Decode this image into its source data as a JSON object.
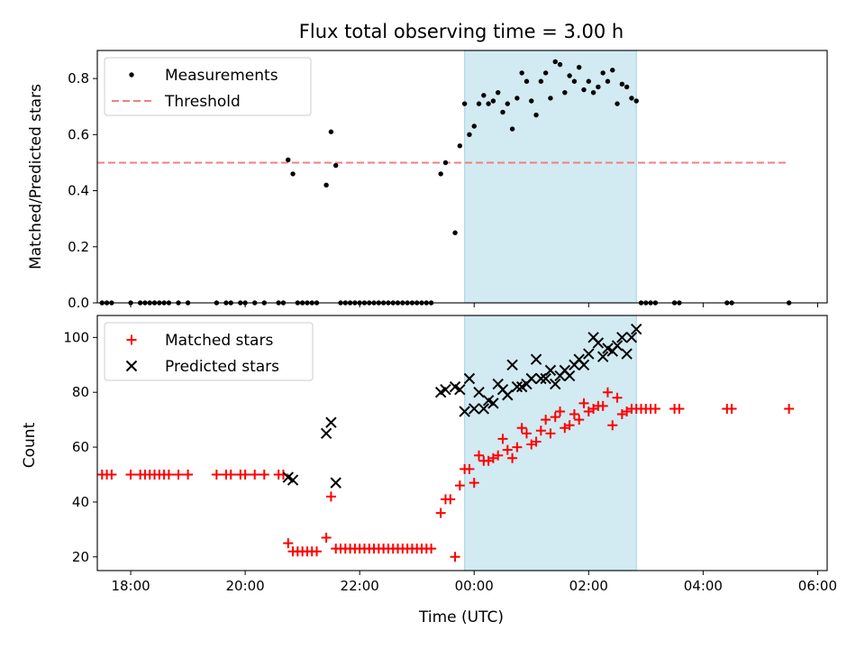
{
  "colors": {
    "measurement": "#000000",
    "threshold": "#f08080",
    "matched": "#ff0000",
    "predicted": "#000000",
    "highlight": "#add8e6"
  },
  "chart_data": [
    {
      "type": "scatter",
      "title": "Flux total observing time = 3.00 h",
      "xlabel": "",
      "ylabel": "Matched/Predicted stars",
      "xlim": [
        "17:25",
        "06:10"
      ],
      "ylim": [
        0,
        0.9
      ],
      "x_ticks": [
        "18:00",
        "20:00",
        "22:00",
        "00:00",
        "02:00",
        "04:00",
        "06:00"
      ],
      "y_ticks": [
        "0.0",
        "0.2",
        "0.4",
        "0.6",
        "0.8"
      ],
      "x_tick_labels_visible": false,
      "highlight_span": [
        "23:50",
        "02:50"
      ],
      "legend_position": "top-left",
      "legend": [
        "Measurements",
        "Threshold"
      ],
      "threshold": {
        "name": "Threshold",
        "value": 0.5,
        "x_range": [
          "17:25",
          "05:30"
        ],
        "style": "dashed"
      },
      "series": [
        {
          "name": "Measurements",
          "marker": "dot",
          "points": [
            [
              "17:30",
              0
            ],
            [
              "17:35",
              0
            ],
            [
              "17:40",
              0
            ],
            [
              "18:00",
              0
            ],
            [
              "18:10",
              0
            ],
            [
              "18:15",
              0
            ],
            [
              "18:20",
              0
            ],
            [
              "18:25",
              0
            ],
            [
              "18:30",
              0
            ],
            [
              "18:35",
              0
            ],
            [
              "18:40",
              0
            ],
            [
              "18:50",
              0
            ],
            [
              "19:00",
              0
            ],
            [
              "19:30",
              0
            ],
            [
              "19:40",
              0
            ],
            [
              "19:45",
              0
            ],
            [
              "19:55",
              0
            ],
            [
              "20:00",
              0
            ],
            [
              "20:10",
              0
            ],
            [
              "20:20",
              0
            ],
            [
              "20:35",
              0
            ],
            [
              "20:40",
              0
            ],
            [
              "20:45",
              0.51
            ],
            [
              "20:50",
              0.46
            ],
            [
              "20:55",
              0
            ],
            [
              "21:00",
              0
            ],
            [
              "21:05",
              0
            ],
            [
              "21:10",
              0
            ],
            [
              "21:15",
              0
            ],
            [
              "21:25",
              0.42
            ],
            [
              "21:30",
              0.61
            ],
            [
              "21:35",
              0.49
            ],
            [
              "21:40",
              0
            ],
            [
              "21:45",
              0
            ],
            [
              "21:50",
              0
            ],
            [
              "21:55",
              0
            ],
            [
              "22:00",
              0
            ],
            [
              "22:05",
              0
            ],
            [
              "22:10",
              0
            ],
            [
              "22:15",
              0
            ],
            [
              "22:20",
              0
            ],
            [
              "22:25",
              0
            ],
            [
              "22:30",
              0
            ],
            [
              "22:35",
              0
            ],
            [
              "22:40",
              0
            ],
            [
              "22:45",
              0
            ],
            [
              "22:50",
              0
            ],
            [
              "22:55",
              0
            ],
            [
              "23:00",
              0
            ],
            [
              "23:05",
              0
            ],
            [
              "23:10",
              0
            ],
            [
              "23:15",
              0
            ],
            [
              "23:25",
              0.46
            ],
            [
              "23:30",
              0.5
            ],
            [
              "23:40",
              0.25
            ],
            [
              "23:45",
              0.56
            ],
            [
              "23:50",
              0.71
            ],
            [
              "23:55",
              0.6
            ],
            [
              "00:00",
              0.63
            ],
            [
              "00:05",
              0.71
            ],
            [
              "00:10",
              0.74
            ],
            [
              "00:15",
              0.71
            ],
            [
              "00:20",
              0.72
            ],
            [
              "00:25",
              0.75
            ],
            [
              "00:30",
              0.68
            ],
            [
              "00:35",
              0.71
            ],
            [
              "00:40",
              0.62
            ],
            [
              "00:45",
              0.73
            ],
            [
              "00:50",
              0.82
            ],
            [
              "00:55",
              0.79
            ],
            [
              "01:00",
              0.72
            ],
            [
              "01:05",
              0.67
            ],
            [
              "01:10",
              0.79
            ],
            [
              "01:15",
              0.82
            ],
            [
              "01:20",
              0.73
            ],
            [
              "01:25",
              0.86
            ],
            [
              "01:30",
              0.85
            ],
            [
              "01:35",
              0.75
            ],
            [
              "01:40",
              0.81
            ],
            [
              "01:45",
              0.79
            ],
            [
              "01:50",
              0.84
            ],
            [
              "01:55",
              0.76
            ],
            [
              "02:00",
              0.79
            ],
            [
              "02:05",
              0.75
            ],
            [
              "02:10",
              0.77
            ],
            [
              "02:15",
              0.82
            ],
            [
              "02:20",
              0.79
            ],
            [
              "02:25",
              0.83
            ],
            [
              "02:30",
              0.71
            ],
            [
              "02:35",
              0.78
            ],
            [
              "02:40",
              0.77
            ],
            [
              "02:45",
              0.73
            ],
            [
              "02:50",
              0.72
            ],
            [
              "02:55",
              0
            ],
            [
              "03:00",
              0
            ],
            [
              "03:05",
              0
            ],
            [
              "03:10",
              0
            ],
            [
              "03:30",
              0
            ],
            [
              "03:35",
              0
            ],
            [
              "04:25",
              0
            ],
            [
              "04:30",
              0
            ],
            [
              "05:30",
              0
            ]
          ]
        }
      ]
    },
    {
      "type": "scatter",
      "title": "",
      "xlabel": "Time (UTC)",
      "ylabel": "Count",
      "xlim": [
        "17:25",
        "06:10"
      ],
      "ylim": [
        15,
        108
      ],
      "x_ticks": [
        "18:00",
        "20:00",
        "22:00",
        "00:00",
        "02:00",
        "04:00",
        "06:00"
      ],
      "y_ticks": [
        "20",
        "40",
        "60",
        "80",
        "100"
      ],
      "highlight_span": [
        "23:50",
        "02:50"
      ],
      "legend_position": "top-left",
      "legend": [
        "Matched stars",
        "Predicted stars"
      ],
      "series": [
        {
          "name": "Matched stars",
          "marker": "plus",
          "points": [
            [
              "17:30",
              50
            ],
            [
              "17:35",
              50
            ],
            [
              "17:40",
              50
            ],
            [
              "18:00",
              50
            ],
            [
              "18:10",
              50
            ],
            [
              "18:15",
              50
            ],
            [
              "18:20",
              50
            ],
            [
              "18:25",
              50
            ],
            [
              "18:30",
              50
            ],
            [
              "18:35",
              50
            ],
            [
              "18:40",
              50
            ],
            [
              "18:50",
              50
            ],
            [
              "19:00",
              50
            ],
            [
              "19:30",
              50
            ],
            [
              "19:40",
              50
            ],
            [
              "19:45",
              50
            ],
            [
              "19:55",
              50
            ],
            [
              "20:00",
              50
            ],
            [
              "20:10",
              50
            ],
            [
              "20:20",
              50
            ],
            [
              "20:35",
              50
            ],
            [
              "20:40",
              50
            ],
            [
              "20:45",
              25
            ],
            [
              "20:50",
              22
            ],
            [
              "20:55",
              22
            ],
            [
              "21:00",
              22
            ],
            [
              "21:05",
              22
            ],
            [
              "21:10",
              22
            ],
            [
              "21:15",
              22
            ],
            [
              "21:25",
              27
            ],
            [
              "21:30",
              42
            ],
            [
              "21:35",
              23
            ],
            [
              "21:40",
              23
            ],
            [
              "21:45",
              23
            ],
            [
              "21:50",
              23
            ],
            [
              "21:55",
              23
            ],
            [
              "22:00",
              23
            ],
            [
              "22:05",
              23
            ],
            [
              "22:10",
              23
            ],
            [
              "22:15",
              23
            ],
            [
              "22:20",
              23
            ],
            [
              "22:25",
              23
            ],
            [
              "22:30",
              23
            ],
            [
              "22:35",
              23
            ],
            [
              "22:40",
              23
            ],
            [
              "22:45",
              23
            ],
            [
              "22:50",
              23
            ],
            [
              "22:55",
              23
            ],
            [
              "23:00",
              23
            ],
            [
              "23:05",
              23
            ],
            [
              "23:10",
              23
            ],
            [
              "23:15",
              23
            ],
            [
              "23:25",
              36
            ],
            [
              "23:30",
              41
            ],
            [
              "23:35",
              41
            ],
            [
              "23:40",
              20
            ],
            [
              "23:45",
              46
            ],
            [
              "23:50",
              52
            ],
            [
              "23:55",
              52
            ],
            [
              "00:00",
              47
            ],
            [
              "00:05",
              57
            ],
            [
              "00:10",
              55
            ],
            [
              "00:15",
              55
            ],
            [
              "00:20",
              56
            ],
            [
              "00:25",
              57
            ],
            [
              "00:30",
              63
            ],
            [
              "00:35",
              59
            ],
            [
              "00:40",
              56
            ],
            [
              "00:45",
              60
            ],
            [
              "00:50",
              67
            ],
            [
              "00:55",
              65
            ],
            [
              "01:00",
              61
            ],
            [
              "01:05",
              62
            ],
            [
              "01:10",
              66
            ],
            [
              "01:15",
              70
            ],
            [
              "01:20",
              65
            ],
            [
              "01:25",
              71
            ],
            [
              "01:30",
              73
            ],
            [
              "01:35",
              67
            ],
            [
              "01:40",
              68
            ],
            [
              "01:45",
              72
            ],
            [
              "01:50",
              70
            ],
            [
              "01:55",
              76
            ],
            [
              "02:00",
              73
            ],
            [
              "02:05",
              74
            ],
            [
              "02:10",
              75
            ],
            [
              "02:15",
              75
            ],
            [
              "02:20",
              80
            ],
            [
              "02:25",
              68
            ],
            [
              "02:30",
              78
            ],
            [
              "02:35",
              72
            ],
            [
              "02:40",
              73
            ],
            [
              "02:45",
              74
            ],
            [
              "02:50",
              74
            ],
            [
              "02:55",
              74
            ],
            [
              "03:00",
              74
            ],
            [
              "03:05",
              74
            ],
            [
              "03:10",
              74
            ],
            [
              "03:30",
              74
            ],
            [
              "03:35",
              74
            ],
            [
              "04:25",
              74
            ],
            [
              "04:30",
              74
            ],
            [
              "05:30",
              74
            ]
          ]
        },
        {
          "name": "Predicted stars",
          "marker": "x",
          "points": [
            [
              "20:45",
              49
            ],
            [
              "20:50",
              48
            ],
            [
              "21:25",
              65
            ],
            [
              "21:30",
              69
            ],
            [
              "21:35",
              47
            ],
            [
              "23:25",
              80
            ],
            [
              "23:30",
              81
            ],
            [
              "23:40",
              82
            ],
            [
              "23:45",
              81
            ],
            [
              "23:50",
              73
            ],
            [
              "23:55",
              85
            ],
            [
              "00:00",
              74
            ],
            [
              "00:05",
              80
            ],
            [
              "00:10",
              74
            ],
            [
              "00:15",
              77
            ],
            [
              "00:20",
              76
            ],
            [
              "00:25",
              83
            ],
            [
              "00:30",
              81
            ],
            [
              "00:35",
              79
            ],
            [
              "00:40",
              90
            ],
            [
              "00:45",
              82
            ],
            [
              "00:50",
              82
            ],
            [
              "00:55",
              83
            ],
            [
              "01:00",
              85
            ],
            [
              "01:05",
              92
            ],
            [
              "01:10",
              85
            ],
            [
              "01:15",
              85
            ],
            [
              "01:20",
              88
            ],
            [
              "01:25",
              83
            ],
            [
              "01:30",
              86
            ],
            [
              "01:35",
              88
            ],
            [
              "01:40",
              86
            ],
            [
              "01:45",
              90
            ],
            [
              "01:50",
              92
            ],
            [
              "01:55",
              90
            ],
            [
              "02:00",
              94
            ],
            [
              "02:05",
              100
            ],
            [
              "02:10",
              98
            ],
            [
              "02:15",
              93
            ],
            [
              "02:20",
              96
            ],
            [
              "02:25",
              95
            ],
            [
              "02:30",
              97
            ],
            [
              "02:35",
              100
            ],
            [
              "02:40",
              94
            ],
            [
              "02:45",
              100
            ],
            [
              "02:50",
              103
            ]
          ]
        }
      ]
    }
  ]
}
